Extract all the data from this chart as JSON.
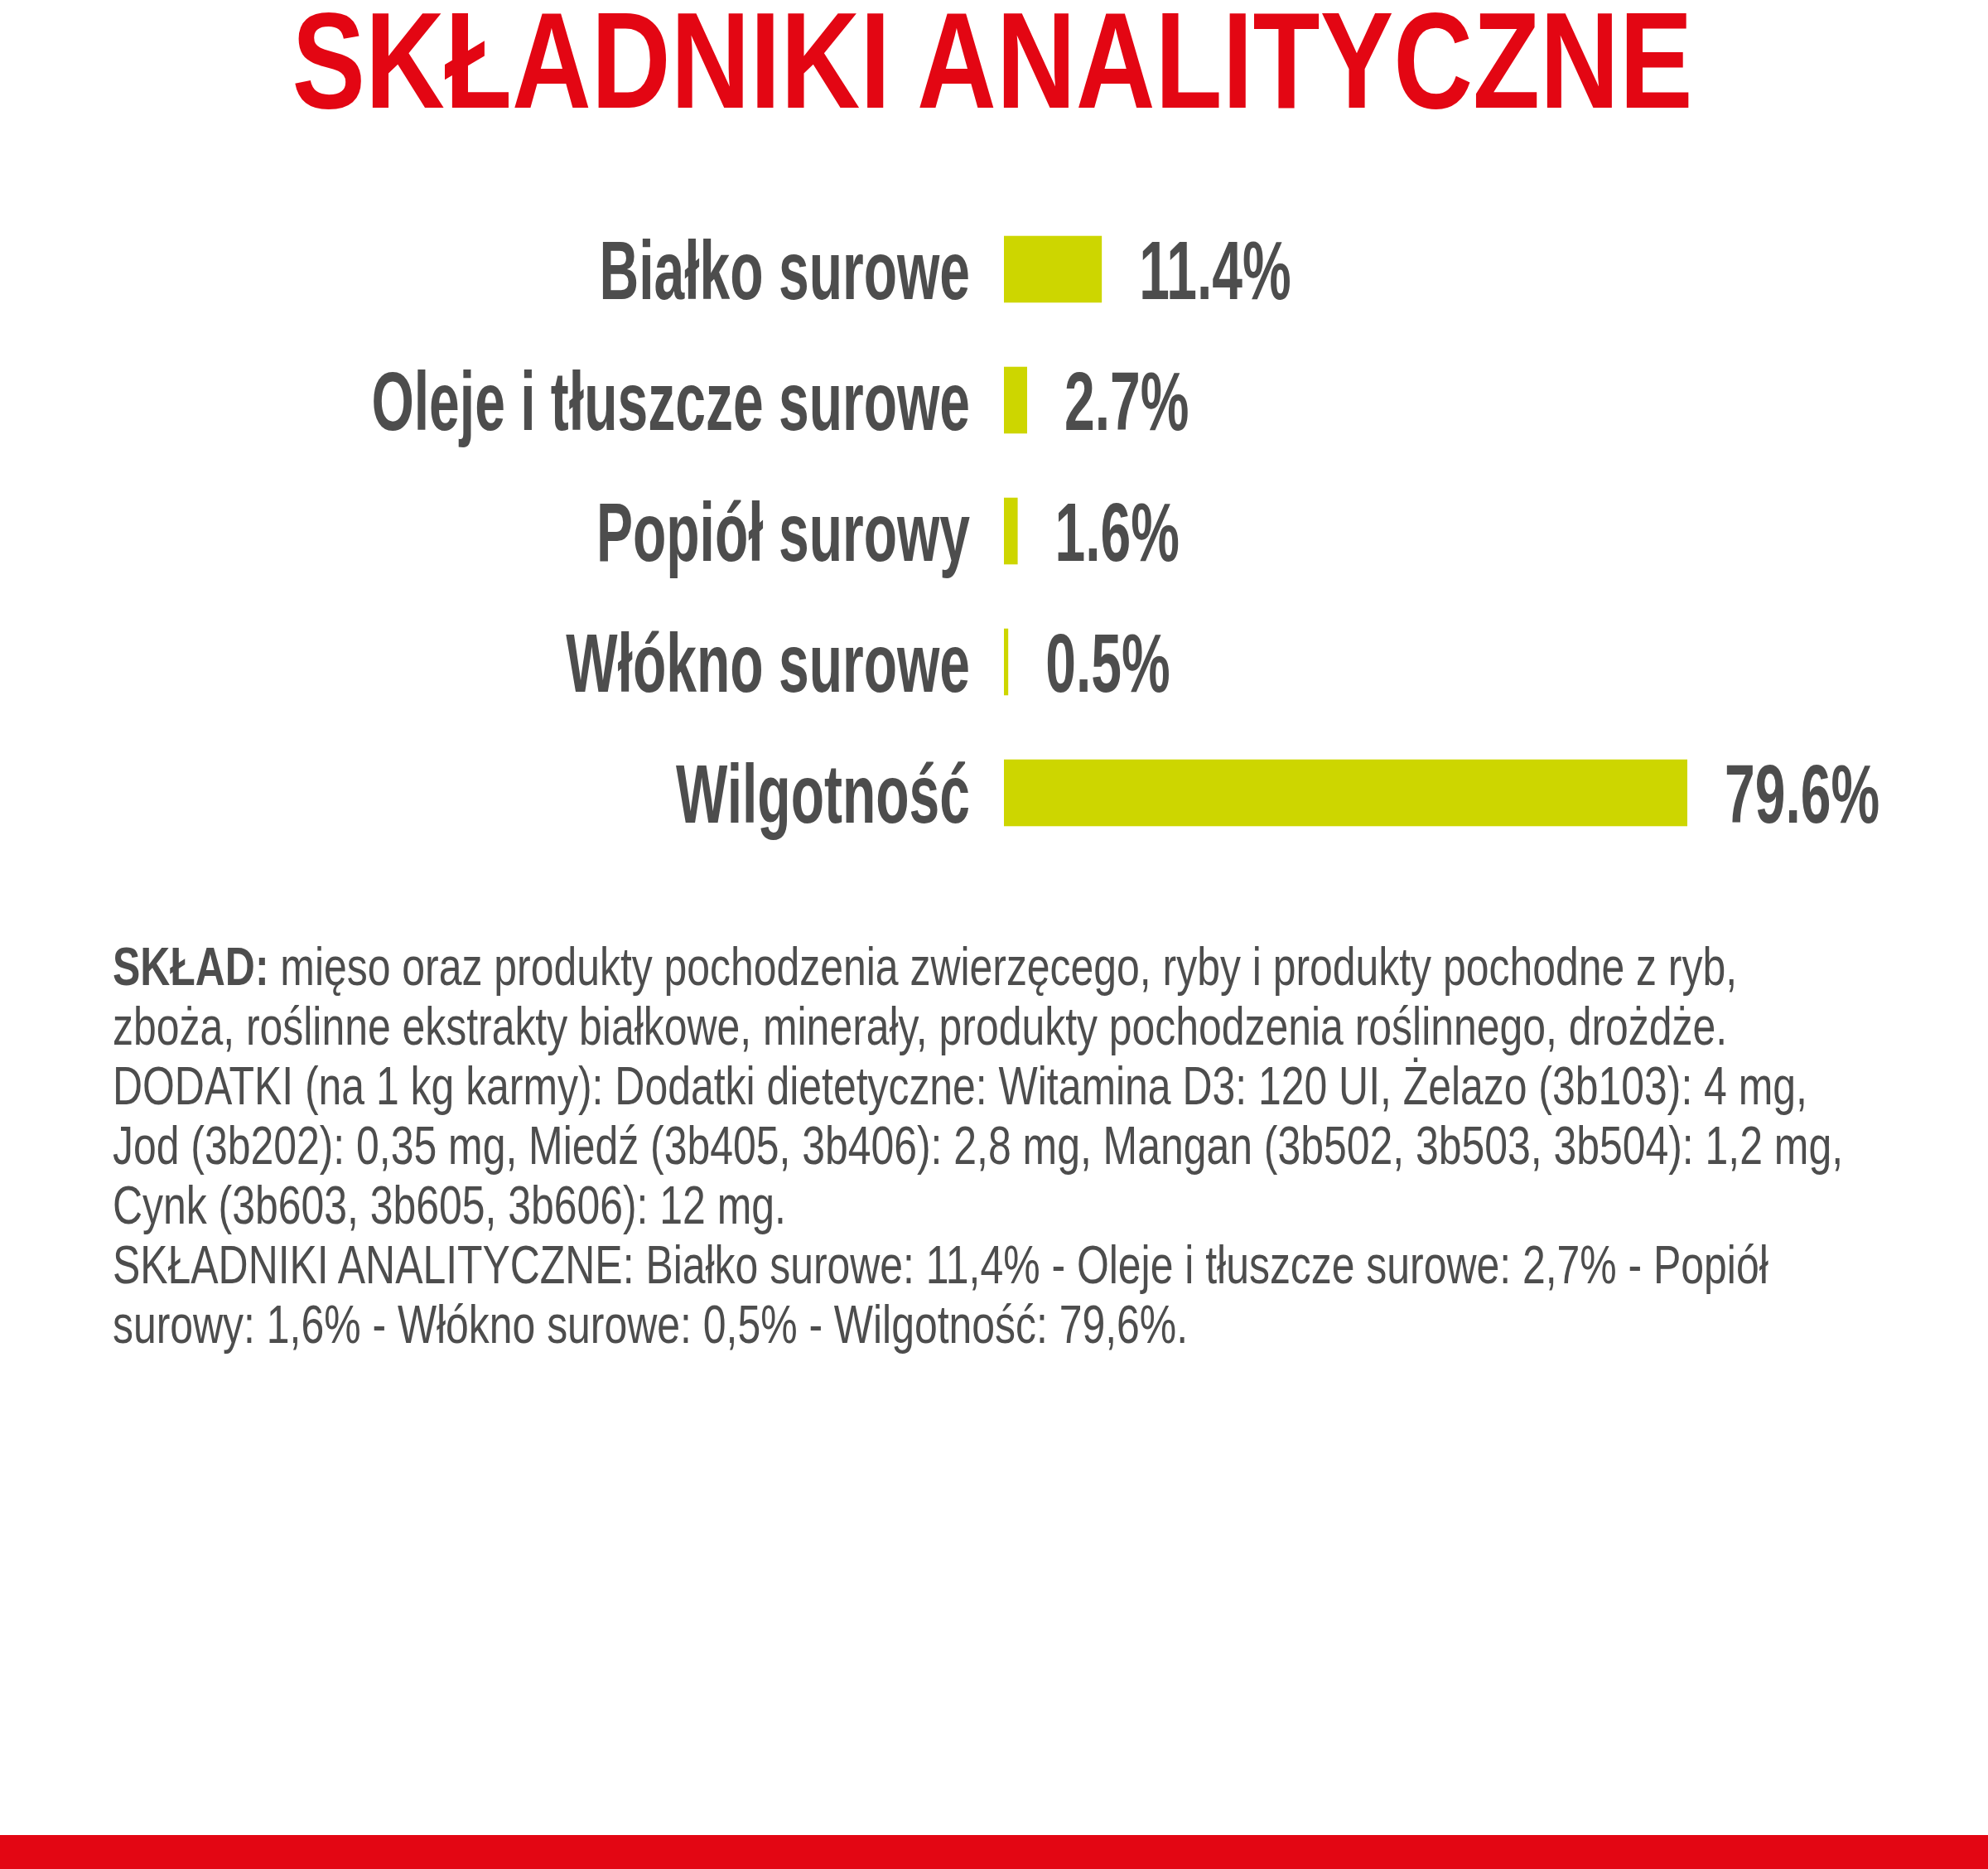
{
  "chart_data": {
    "type": "bar",
    "orientation": "horizontal",
    "title": "SKŁADNIKI ANALITYCZNE",
    "categories": [
      "Białko surowe",
      "Oleje i tłuszcze surowe",
      "Popiół surowy",
      "Włókno surowe",
      "Wilgotność"
    ],
    "values": [
      11.4,
      2.7,
      1.6,
      0.5,
      79.6
    ],
    "value_labels": [
      "11.4%",
      "2.7%",
      "1.6%",
      "0.5%",
      "79.6%"
    ],
    "color": "#cdd600",
    "tick_labels": "y",
    "annotations": [
      "SKŁAD: mięso oraz produkty pochodzenia zwierzęcego, ryby i produkty pochodne z ryb, zboża, roślinne ekstrakty białkowe, minerały, produkty pochodzenia roślinnego, drożdże.",
      "DODATKI (na 1 kg karmy): Dodatki dietetyczne: Witamina D3: 120 UI, Żelazo (3b103): 4 mg, Jod (3b202): 0,35 mg, Miedź (3b405, 3b406): 2,8 mg, Mangan (3b502, 3b503, 3b504): 1,2 mg, Cynk (3b603, 3b605, 3b606): 12 mg.",
      "SKŁADNIKI ANALITYCZNE: Białko surowe: 11,4% - Oleje i tłuszcze surowe: 2,7% - Popiół surowy: 1,6% - Włókno surowe: 0,5% - Wilgotność: 79,6%."
    ]
  }
}
